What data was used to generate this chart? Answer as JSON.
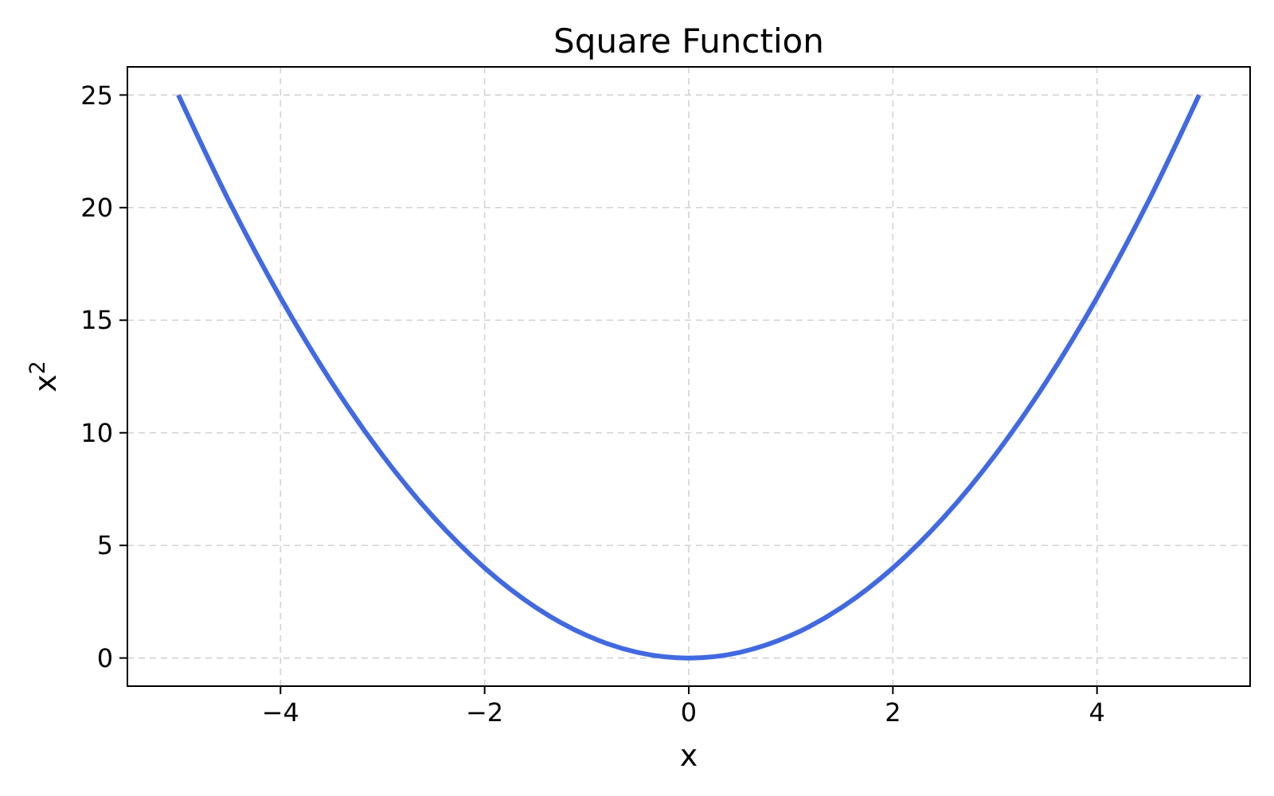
{
  "chart_data": {
    "type": "line",
    "title": "Square Function",
    "xlabel": "x",
    "ylabel": "x$^{2}$",
    "x": [
      -5,
      -4.5,
      -4,
      -3.5,
      -3,
      -2.5,
      -2,
      -1.5,
      -1,
      -0.5,
      0,
      0.5,
      1,
      1.5,
      2,
      2.5,
      3,
      3.5,
      4,
      4.5,
      5
    ],
    "series": [
      {
        "color": "#4169e1",
        "values": [
          25,
          20.25,
          16,
          12.25,
          9,
          6.25,
          4,
          2.25,
          1,
          0.25,
          0,
          0.25,
          1,
          2.25,
          4,
          6.25,
          9,
          12.25,
          16,
          20.25,
          25
        ]
      }
    ],
    "xlim": [
      -5.5,
      5.5
    ],
    "ylim": [
      -1.25,
      26.25
    ],
    "xticks": [
      {
        "value": -4,
        "label": "−4"
      },
      {
        "value": -2,
        "label": "−2"
      },
      0,
      2,
      4
    ],
    "yticks": [
      0,
      5,
      10,
      15,
      20,
      25
    ],
    "grid": true,
    "line_style": "solid",
    "marker": "none"
  }
}
